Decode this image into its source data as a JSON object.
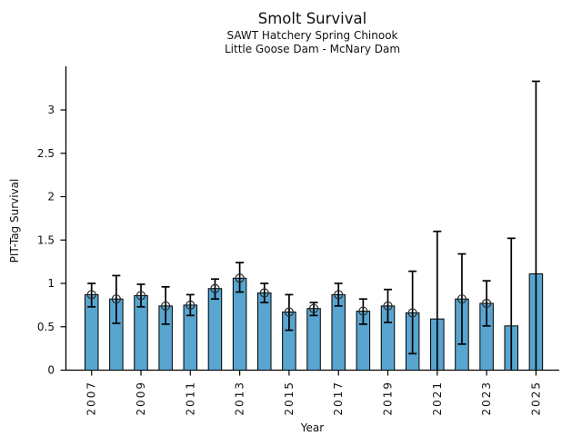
{
  "chart_data": {
    "type": "bar",
    "title": "Smolt Survival",
    "subtitle1": "SAWT Hatchery Spring Chinook",
    "subtitle2": "Little Goose Dam - McNary Dam",
    "xlabel": "Year",
    "ylabel": "PIT-Tag Survival",
    "ylim": [
      0,
      3.5
    ],
    "yticks": [
      0,
      0.5,
      1,
      1.5,
      2,
      2.5,
      3
    ],
    "xtick_labels": [
      "2007",
      "2009",
      "2011",
      "2013",
      "2015",
      "2017",
      "2019",
      "2021",
      "2023",
      "2025"
    ],
    "grid": false,
    "legend": "none",
    "bar_color": "#58A5D0",
    "bar_edge_color": "#000000",
    "error_color": "#000000",
    "marker": "open-circle",
    "marker_color": "#2a2a2a",
    "categories": [
      "2007",
      "2008",
      "2009",
      "2010",
      "2011",
      "2012",
      "2013",
      "2014",
      "2015",
      "2016",
      "2017",
      "2018",
      "2019",
      "2020",
      "2021",
      "2022",
      "2023",
      "2024",
      "2025"
    ],
    "series": [
      {
        "name": "PIT-Tag Survival",
        "values": [
          0.87,
          0.82,
          0.86,
          0.74,
          0.75,
          0.94,
          1.06,
          0.89,
          0.67,
          0.71,
          0.87,
          0.68,
          0.74,
          0.66,
          0.59,
          0.82,
          0.77,
          0.51,
          1.11
        ]
      }
    ],
    "error_low": [
      0.73,
      0.54,
      0.73,
      0.53,
      0.63,
      0.82,
      0.9,
      0.78,
      0.46,
      0.63,
      0.74,
      0.53,
      0.55,
      0.19,
      0.0,
      0.3,
      0.51,
      0.0,
      0.0
    ],
    "error_high": [
      1.0,
      1.09,
      0.99,
      0.96,
      0.87,
      1.05,
      1.24,
      1.0,
      0.87,
      0.78,
      1.0,
      0.82,
      0.93,
      1.14,
      1.6,
      1.34,
      1.03,
      1.52,
      3.33
    ],
    "marker_shown": [
      true,
      true,
      true,
      true,
      true,
      true,
      true,
      true,
      true,
      true,
      true,
      true,
      true,
      true,
      false,
      true,
      true,
      false,
      false
    ]
  }
}
